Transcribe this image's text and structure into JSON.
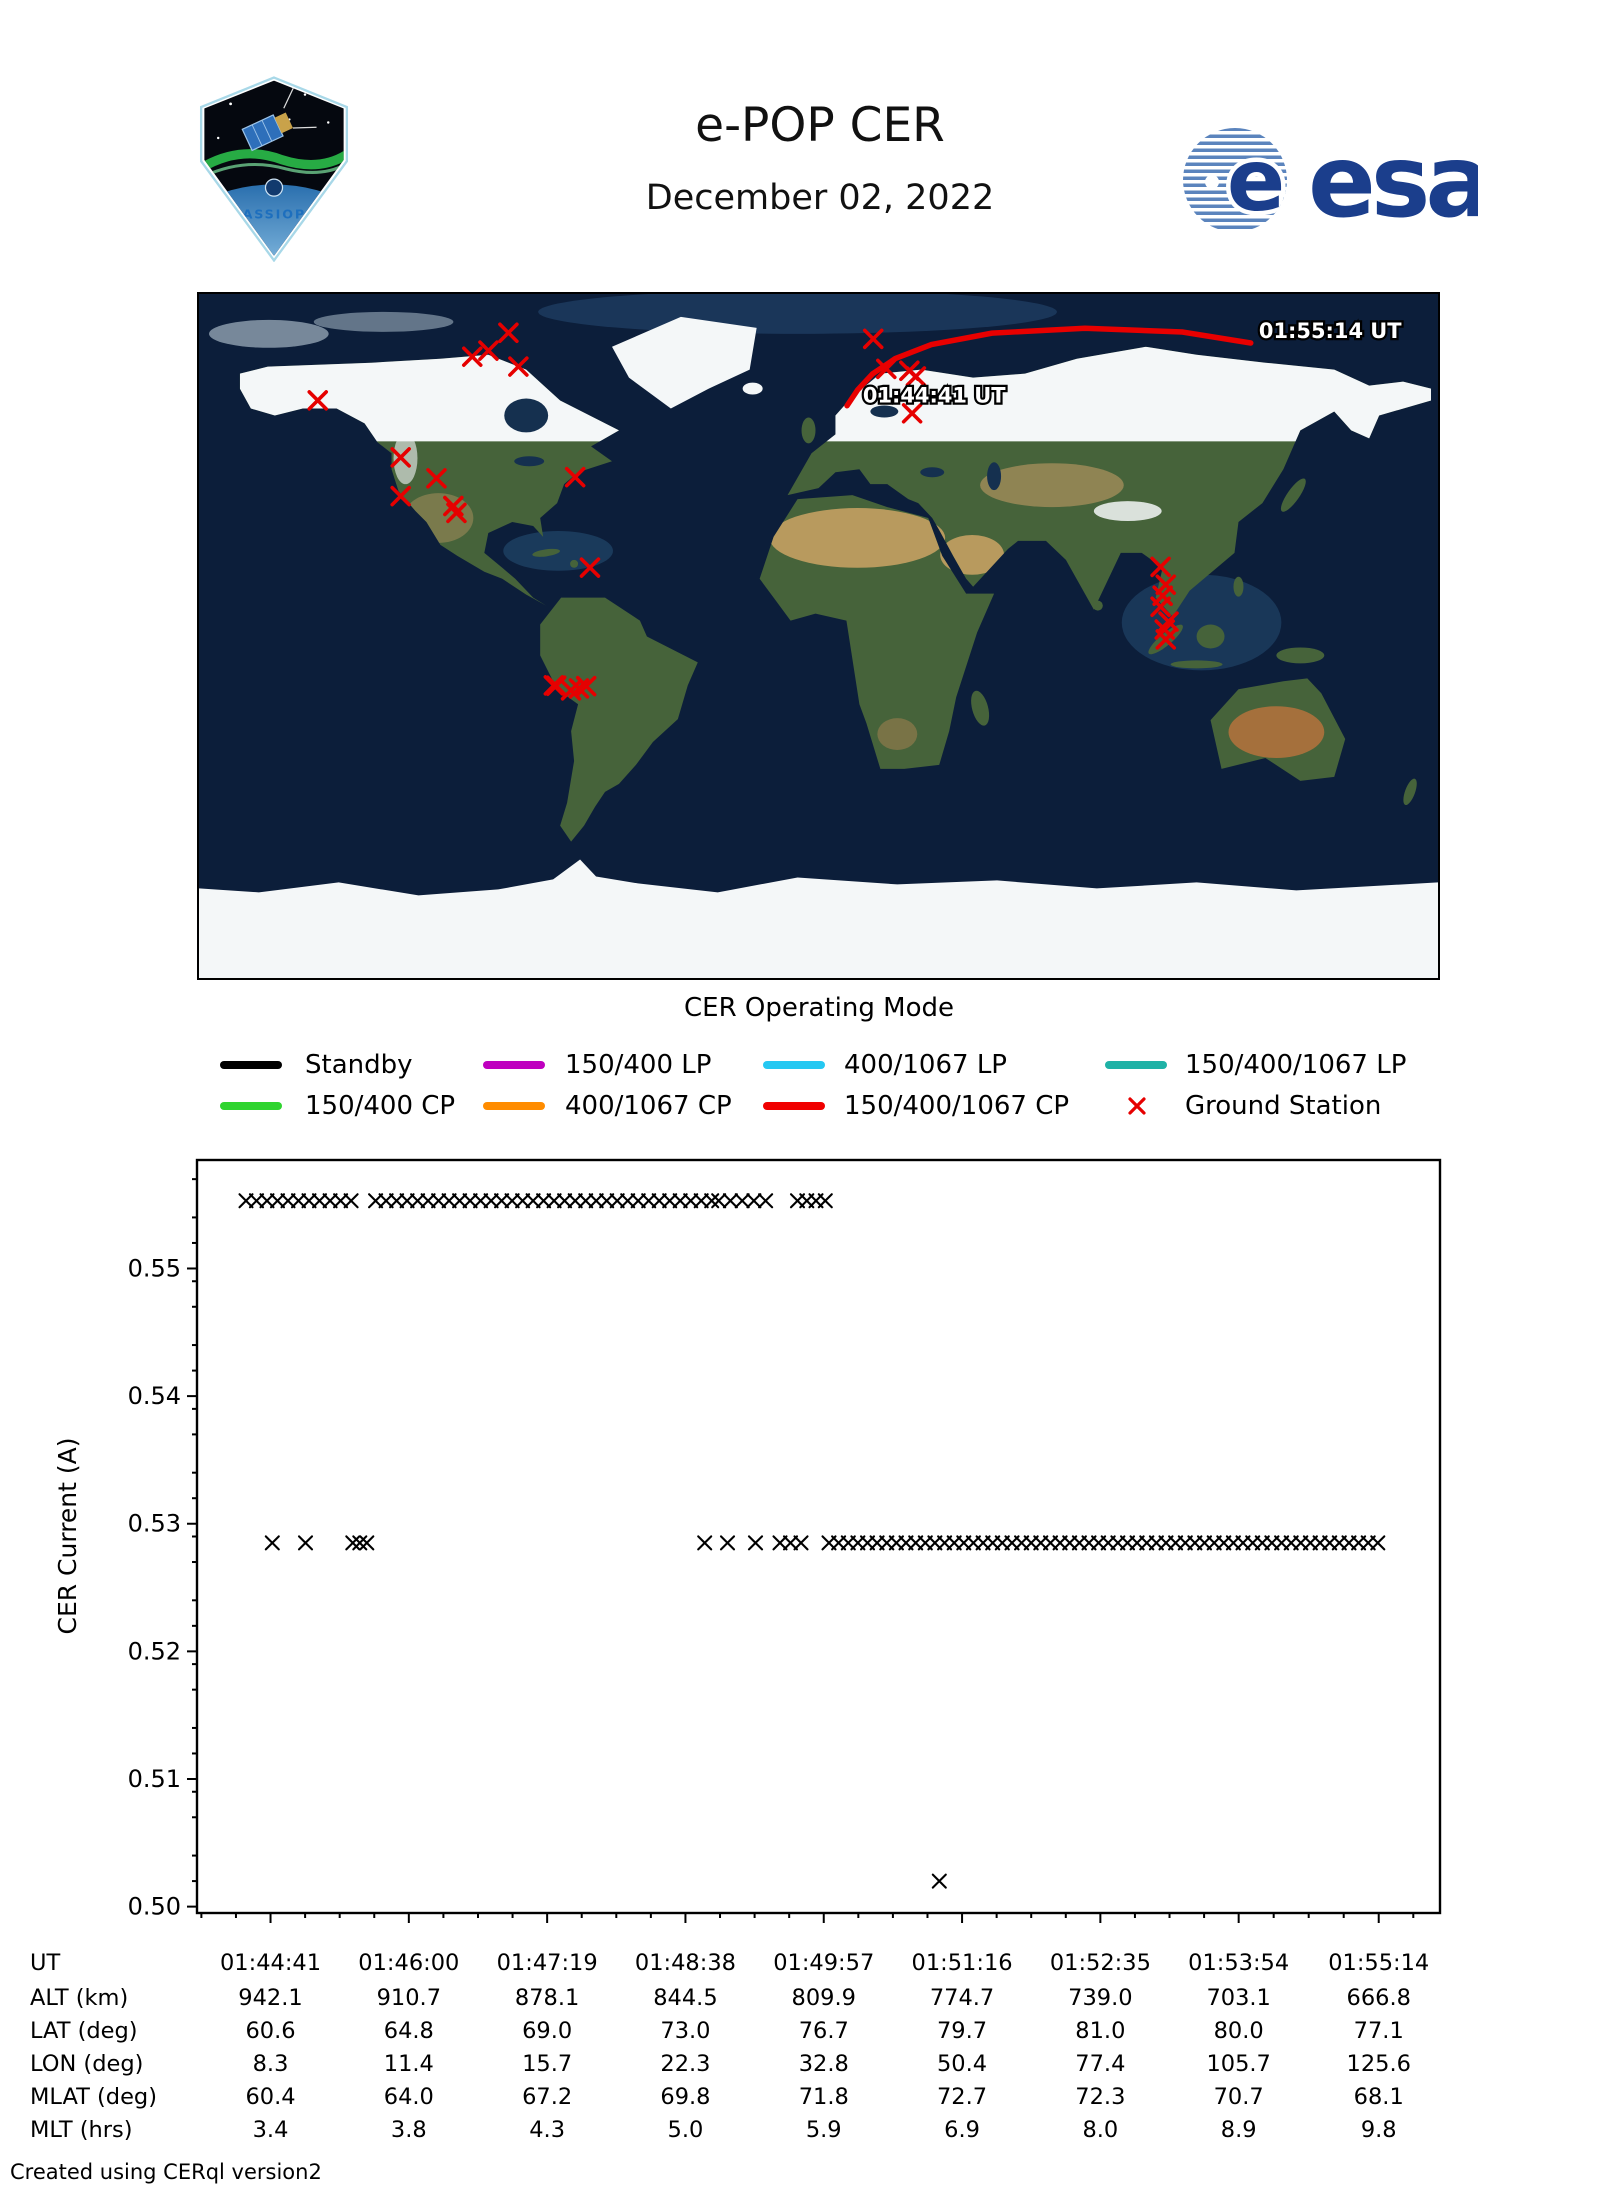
{
  "header": {
    "title": "e-POP CER",
    "date": "December 02, 2022",
    "patch_text": "CASSIOPE",
    "esa_text": "esa"
  },
  "map": {
    "start_time_label": "01:44:41 UT",
    "end_time_label": "01:55:14 UT",
    "trajectory_color": "#e80000",
    "ground_station_color": "#e60000",
    "trajectory": [
      {
        "lon": 8.3,
        "lat": 60.6
      },
      {
        "lon": 11.4,
        "lat": 64.8
      },
      {
        "lon": 15.7,
        "lat": 69.0
      },
      {
        "lon": 22.3,
        "lat": 73.0
      },
      {
        "lon": 32.8,
        "lat": 76.7
      },
      {
        "lon": 50.4,
        "lat": 79.7
      },
      {
        "lon": 77.4,
        "lat": 81.0
      },
      {
        "lon": 105.7,
        "lat": 80.0
      },
      {
        "lon": 125.6,
        "lat": 77.1
      }
    ],
    "ground_stations": [
      [
        -145.5,
        62.0
      ],
      [
        -95.9,
        75.1
      ],
      [
        -90.1,
        79.8
      ],
      [
        -87.2,
        70.9
      ],
      [
        -100.6,
        73.5
      ],
      [
        -121.4,
        47.0
      ],
      [
        -111.0,
        41.5
      ],
      [
        -121.4,
        36.8
      ],
      [
        -106.1,
        34.2
      ],
      [
        -105.2,
        32.4
      ],
      [
        -70.7,
        41.8
      ],
      [
        -66.4,
        18.0
      ],
      [
        -76.9,
        -13.0
      ],
      [
        -76.2,
        -13.1
      ],
      [
        -71.9,
        -14.3
      ],
      [
        -69.6,
        -13.8
      ],
      [
        -67.5,
        -13.2
      ],
      [
        15.9,
        78.2
      ],
      [
        19.7,
        70.3
      ],
      [
        26.4,
        69.8
      ],
      [
        28.3,
        68.3
      ],
      [
        27.2,
        58.6
      ],
      [
        99.4,
        18.2
      ],
      [
        100.9,
        13.5
      ],
      [
        100.0,
        10.6
      ],
      [
        99.4,
        7.7
      ],
      [
        101.7,
        3.8
      ],
      [
        100.6,
        1.7
      ],
      [
        100.9,
        -0.9
      ]
    ]
  },
  "legend": {
    "title": "CER Operating Mode",
    "rows": [
      [
        {
          "label": "Standby",
          "color": "#000000",
          "type": "line"
        },
        {
          "label": "150/400 LP",
          "color": "#bf00bf",
          "type": "line"
        },
        {
          "label": "400/1067 LP",
          "color": "#25c8f2",
          "type": "line"
        },
        {
          "label": "150/400/1067 LP",
          "color": "#1fb2a6",
          "type": "line"
        }
      ],
      [
        {
          "label": "150/400 CP",
          "color": "#2fd42f",
          "type": "line"
        },
        {
          "label": "400/1067 CP",
          "color": "#ff8c00",
          "type": "line"
        },
        {
          "label": "150/400/1067 CP",
          "color": "#f00000",
          "type": "line"
        },
        {
          "label": "Ground Station",
          "color": "#e60000",
          "type": "x-marker"
        }
      ]
    ]
  },
  "chart_data": {
    "type": "scatter",
    "ylabel": "CER Current (A)",
    "marker": "x",
    "marker_color": "#000000",
    "x_tick_labels": [
      "01:44:41",
      "01:46:00",
      "01:47:19",
      "01:48:38",
      "01:49:57",
      "01:51:16",
      "01:52:35",
      "01:53:54",
      "01:55:14"
    ],
    "x_tick_seconds": [
      0,
      79,
      158,
      237,
      316,
      395,
      474,
      553,
      633
    ],
    "y_ticks": [
      "0.50",
      "0.51",
      "0.52",
      "0.53",
      "0.54",
      "0.55"
    ],
    "y_tick_values": [
      0.5,
      0.51,
      0.52,
      0.53,
      0.54,
      0.55
    ],
    "y_minor_step": 0.0025,
    "ylim": [
      0.4995,
      0.5585
    ],
    "xlim_seconds": [
      -42,
      668
    ],
    "series": [
      {
        "name": "standby-current-high",
        "value": 0.5553,
        "runs": [
          [
            -14,
            46,
            6
          ],
          [
            60,
            252,
            6
          ],
          [
            256,
            283,
            6.7
          ],
          [
            301,
            317,
            5.3
          ]
        ],
        "points": []
      },
      {
        "name": "standby-current-low",
        "value": 0.5285,
        "runs": [
          [
            319,
            633,
            5.5
          ]
        ],
        "points": [
          1,
          20,
          47,
          51,
          55,
          248,
          261,
          277,
          291,
          297,
          303
        ]
      }
    ],
    "outliers": [
      {
        "t": 382,
        "value": 0.502
      }
    ]
  },
  "table": {
    "rows": [
      {
        "label": "UT",
        "values": [
          "01:44:41",
          "01:46:00",
          "01:47:19",
          "01:48:38",
          "01:49:57",
          "01:51:16",
          "01:52:35",
          "01:53:54",
          "01:55:14"
        ]
      },
      {
        "label": "ALT (km)",
        "values": [
          "942.1",
          "910.7",
          "878.1",
          "844.5",
          "809.9",
          "774.7",
          "739.0",
          "703.1",
          "666.8"
        ]
      },
      {
        "label": "LAT (deg)",
        "values": [
          "60.6",
          "64.8",
          "69.0",
          "73.0",
          "76.7",
          "79.7",
          "81.0",
          "80.0",
          "77.1"
        ]
      },
      {
        "label": "LON (deg)",
        "values": [
          "8.3",
          "11.4",
          "15.7",
          "22.3",
          "32.8",
          "50.4",
          "77.4",
          "105.7",
          "125.6"
        ]
      },
      {
        "label": "MLAT (deg)",
        "values": [
          "60.4",
          "64.0",
          "67.2",
          "69.8",
          "71.8",
          "72.7",
          "72.3",
          "70.7",
          "68.1"
        ]
      },
      {
        "label": "MLT (hrs)",
        "values": [
          "3.4",
          "3.8",
          "4.3",
          "5.0",
          "5.9",
          "6.9",
          "8.0",
          "8.9",
          "9.8"
        ]
      }
    ]
  },
  "footer": "Created using CERql version2"
}
